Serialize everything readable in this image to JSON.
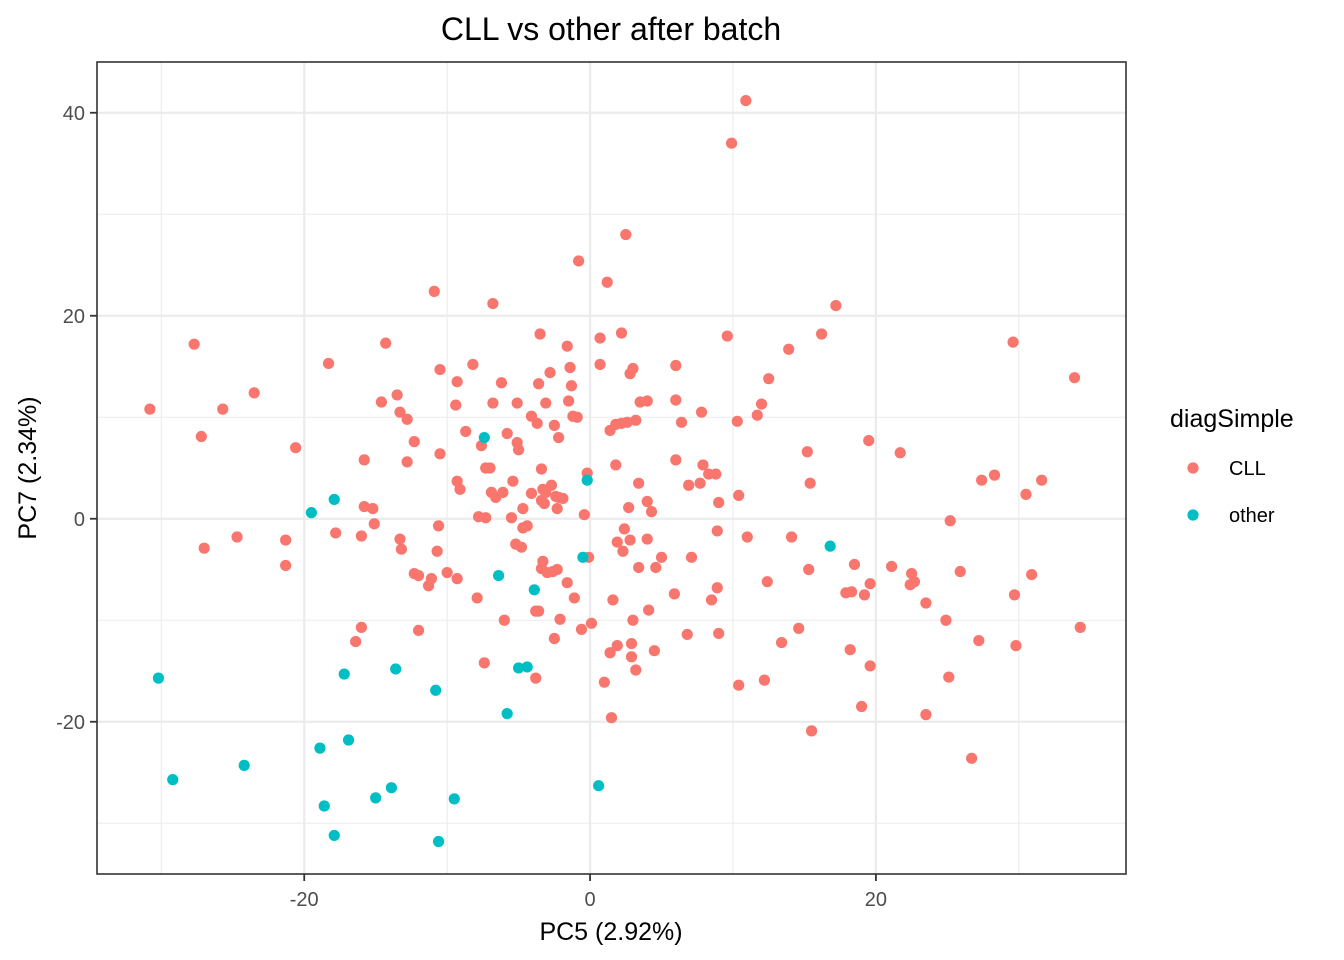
{
  "chart_data": {
    "type": "scatter",
    "title": "CLL vs other after batch",
    "xlabel": "PC5 (2.92%)",
    "ylabel": "PC7 (2.34%)",
    "xlim": [
      -34.5,
      37.5
    ],
    "ylim": [
      -35,
      45
    ],
    "x_ticks": [
      -20,
      0,
      20
    ],
    "y_ticks": [
      -20,
      0,
      20,
      40
    ],
    "x_tick_labels": [
      "-20",
      "0",
      "20"
    ],
    "y_tick_labels": [
      "-20",
      "0",
      "20",
      "40"
    ],
    "grid": true,
    "legend": {
      "title": "diagSimple",
      "position": "right"
    },
    "series": [
      {
        "name": "CLL",
        "color": "#F8766D",
        "points": [
          [
            10.9,
            41.2
          ],
          [
            9.9,
            37.0
          ],
          [
            2.5,
            28.0
          ],
          [
            -0.8,
            25.4
          ],
          [
            1.2,
            23.3
          ],
          [
            -10.9,
            22.4
          ],
          [
            -6.8,
            21.2
          ],
          [
            17.2,
            21.0
          ],
          [
            -3.5,
            18.2
          ],
          [
            2.2,
            18.3
          ],
          [
            16.2,
            18.2
          ],
          [
            9.6,
            18.0
          ],
          [
            0.7,
            17.8
          ],
          [
            -1.6,
            17.0
          ],
          [
            29.6,
            17.4
          ],
          [
            -27.7,
            17.2
          ],
          [
            -14.3,
            17.3
          ],
          [
            13.9,
            16.7
          ],
          [
            -18.3,
            15.3
          ],
          [
            -8.2,
            15.2
          ],
          [
            0.7,
            15.2
          ],
          [
            6.0,
            15.1
          ],
          [
            -1.4,
            14.9
          ],
          [
            3.0,
            14.8
          ],
          [
            -10.5,
            14.7
          ],
          [
            -2.8,
            14.4
          ],
          [
            2.8,
            14.3
          ],
          [
            33.9,
            13.9
          ],
          [
            12.5,
            13.8
          ],
          [
            -9.3,
            13.5
          ],
          [
            -6.2,
            13.4
          ],
          [
            -3.6,
            13.3
          ],
          [
            -1.3,
            13.1
          ],
          [
            -23.5,
            12.4
          ],
          [
            -13.5,
            12.2
          ],
          [
            4.0,
            11.6
          ],
          [
            -14.6,
            11.5
          ],
          [
            -6.8,
            11.4
          ],
          [
            -5.1,
            11.4
          ],
          [
            -3.1,
            11.4
          ],
          [
            -1.5,
            11.6
          ],
          [
            3.5,
            11.5
          ],
          [
            12.0,
            11.3
          ],
          [
            6.0,
            11.7
          ],
          [
            -30.8,
            10.8
          ],
          [
            -25.7,
            10.8
          ],
          [
            -9.4,
            11.2
          ],
          [
            -13.3,
            10.5
          ],
          [
            -1.2,
            10.1
          ],
          [
            -0.9,
            10.0
          ],
          [
            -4.1,
            10.1
          ],
          [
            -12.8,
            9.8
          ],
          [
            7.8,
            10.5
          ],
          [
            11.7,
            10.2
          ],
          [
            10.3,
            9.6
          ],
          [
            3.2,
            9.7
          ],
          [
            6.4,
            9.5
          ],
          [
            -3.7,
            9.4
          ],
          [
            -2.5,
            9.2
          ],
          [
            1.4,
            8.7
          ],
          [
            1.8,
            9.3
          ],
          [
            2.2,
            9.4
          ],
          [
            2.6,
            9.5
          ],
          [
            -8.7,
            8.6
          ],
          [
            -5.8,
            8.4
          ],
          [
            -2.2,
            8.0
          ],
          [
            -27.2,
            8.1
          ],
          [
            -12.3,
            7.6
          ],
          [
            -5.1,
            7.5
          ],
          [
            -7.6,
            7.2
          ],
          [
            19.5,
            7.7
          ],
          [
            -20.6,
            7.0
          ],
          [
            -5.0,
            6.8
          ],
          [
            15.2,
            6.6
          ],
          [
            21.7,
            6.5
          ],
          [
            -10.5,
            6.4
          ],
          [
            -15.8,
            5.8
          ],
          [
            -12.8,
            5.6
          ],
          [
            1.8,
            5.3
          ],
          [
            6.0,
            5.8
          ],
          [
            7.9,
            5.3
          ],
          [
            -7.3,
            5.0
          ],
          [
            -7.0,
            5.0
          ],
          [
            -3.4,
            4.9
          ],
          [
            8.3,
            4.4
          ],
          [
            8.8,
            4.4
          ],
          [
            -0.2,
            4.5
          ],
          [
            -9.3,
            3.7
          ],
          [
            -5.4,
            3.7
          ],
          [
            -2.7,
            3.3
          ],
          [
            3.4,
            3.5
          ],
          [
            6.9,
            3.3
          ],
          [
            7.7,
            3.5
          ],
          [
            15.4,
            3.5
          ],
          [
            27.4,
            3.8
          ],
          [
            28.3,
            4.3
          ],
          [
            31.6,
            3.8
          ],
          [
            -9.1,
            2.9
          ],
          [
            -6.9,
            2.6
          ],
          [
            -6.1,
            2.6
          ],
          [
            -4.1,
            2.5
          ],
          [
            -3.3,
            2.9
          ],
          [
            -3.1,
            2.6
          ],
          [
            -2.4,
            2.2
          ],
          [
            -2.2,
            2.1
          ],
          [
            -1.9,
            2.0
          ],
          [
            -6.6,
            2.1
          ],
          [
            -3.4,
            1.8
          ],
          [
            -3.2,
            1.5
          ],
          [
            4.0,
            1.7
          ],
          [
            10.4,
            2.3
          ],
          [
            9.0,
            1.6
          ],
          [
            30.5,
            2.4
          ],
          [
            -15.8,
            1.2
          ],
          [
            -15.2,
            1.0
          ],
          [
            -4.7,
            1.0
          ],
          [
            -2.3,
            1.0
          ],
          [
            2.7,
            1.1
          ],
          [
            -7.8,
            0.2
          ],
          [
            -7.3,
            0.1
          ],
          [
            -5.5,
            0.1
          ],
          [
            -0.4,
            0.4
          ],
          [
            4.3,
            0.7
          ],
          [
            25.2,
            -0.2
          ],
          [
            -15.1,
            -0.5
          ],
          [
            -4.7,
            -0.9
          ],
          [
            -4.4,
            -0.7
          ],
          [
            -10.6,
            -0.7
          ],
          [
            2.4,
            -1.0
          ],
          [
            8.9,
            -1.2
          ],
          [
            -17.8,
            -1.4
          ],
          [
            -16.0,
            -1.7
          ],
          [
            -24.7,
            -1.8
          ],
          [
            -21.3,
            -2.1
          ],
          [
            -13.3,
            -2.0
          ],
          [
            -5.2,
            -2.5
          ],
          [
            -4.8,
            -2.8
          ],
          [
            1.9,
            -2.3
          ],
          [
            2.8,
            -2.1
          ],
          [
            4.0,
            -2.0
          ],
          [
            11.0,
            -1.8
          ],
          [
            14.1,
            -1.8
          ],
          [
            -27.0,
            -2.9
          ],
          [
            -13.2,
            -3.0
          ],
          [
            -10.7,
            -3.2
          ],
          [
            -0.1,
            -3.8
          ],
          [
            2.3,
            -3.2
          ],
          [
            5.0,
            -3.8
          ],
          [
            7.1,
            -3.8
          ],
          [
            -3.3,
            -4.2
          ],
          [
            -3.4,
            -4.9
          ],
          [
            -3.0,
            -5.3
          ],
          [
            -2.6,
            -5.2
          ],
          [
            -2.3,
            -5.0
          ],
          [
            3.4,
            -4.8
          ],
          [
            4.6,
            -4.8
          ],
          [
            15.3,
            -5.0
          ],
          [
            18.5,
            -4.5
          ],
          [
            21.1,
            -4.7
          ],
          [
            22.5,
            -5.4
          ],
          [
            25.9,
            -5.2
          ],
          [
            30.9,
            -5.5
          ],
          [
            -21.3,
            -4.6
          ],
          [
            -12.3,
            -5.4
          ],
          [
            -12.0,
            -5.6
          ],
          [
            -11.1,
            -5.9
          ],
          [
            -11.3,
            -6.6
          ],
          [
            -9.3,
            -5.9
          ],
          [
            -10.0,
            -5.3
          ],
          [
            -1.6,
            -6.3
          ],
          [
            12.4,
            -6.2
          ],
          [
            19.6,
            -6.4
          ],
          [
            22.4,
            -6.5
          ],
          [
            22.7,
            -6.2
          ],
          [
            8.9,
            -6.8
          ],
          [
            -7.9,
            -7.8
          ],
          [
            -1.1,
            -7.8
          ],
          [
            1.6,
            -8.0
          ],
          [
            5.9,
            -7.4
          ],
          [
            8.5,
            -8.0
          ],
          [
            17.9,
            -7.3
          ],
          [
            18.3,
            -7.2
          ],
          [
            19.2,
            -7.5
          ],
          [
            23.5,
            -8.3
          ],
          [
            29.7,
            -7.5
          ],
          [
            -3.8,
            -9.1
          ],
          [
            -3.6,
            -9.1
          ],
          [
            4.1,
            -9.0
          ],
          [
            -6.0,
            -10.0
          ],
          [
            -2.1,
            -9.9
          ],
          [
            0.1,
            -10.3
          ],
          [
            -0.6,
            -10.9
          ],
          [
            3.0,
            -10.0
          ],
          [
            6.8,
            -11.4
          ],
          [
            9.0,
            -11.3
          ],
          [
            14.6,
            -10.8
          ],
          [
            24.9,
            -10.0
          ],
          [
            34.3,
            -10.7
          ],
          [
            -16.0,
            -10.7
          ],
          [
            -12.0,
            -11.0
          ],
          [
            -16.4,
            -12.1
          ],
          [
            -2.5,
            -11.8
          ],
          [
            2.9,
            -12.3
          ],
          [
            1.9,
            -12.5
          ],
          [
            13.4,
            -12.2
          ],
          [
            18.2,
            -12.9
          ],
          [
            27.2,
            -12.0
          ],
          [
            29.8,
            -12.5
          ],
          [
            1.4,
            -13.2
          ],
          [
            2.9,
            -13.6
          ],
          [
            4.5,
            -13.0
          ],
          [
            -7.4,
            -14.2
          ],
          [
            3.2,
            -14.9
          ],
          [
            19.6,
            -14.5
          ],
          [
            -3.8,
            -15.7
          ],
          [
            1.0,
            -16.1
          ],
          [
            10.4,
            -16.4
          ],
          [
            12.2,
            -15.9
          ],
          [
            25.1,
            -15.6
          ],
          [
            1.5,
            -19.6
          ],
          [
            19.0,
            -18.5
          ],
          [
            23.5,
            -19.3
          ],
          [
            15.5,
            -20.9
          ],
          [
            26.7,
            -23.6
          ]
        ]
      },
      {
        "name": "other",
        "color": "#00BFC4",
        "points": [
          [
            -7.4,
            8.0
          ],
          [
            -0.2,
            3.8
          ],
          [
            -17.9,
            1.9
          ],
          [
            -19.5,
            0.6
          ],
          [
            16.8,
            -2.7
          ],
          [
            -0.5,
            -3.8
          ],
          [
            -6.4,
            -5.6
          ],
          [
            -3.9,
            -7.0
          ],
          [
            -4.4,
            -14.6
          ],
          [
            -5.0,
            -14.7
          ],
          [
            -13.6,
            -14.8
          ],
          [
            -17.2,
            -15.3
          ],
          [
            -30.2,
            -15.7
          ],
          [
            -10.8,
            -16.9
          ],
          [
            -5.8,
            -19.2
          ],
          [
            -16.9,
            -21.8
          ],
          [
            -18.9,
            -22.6
          ],
          [
            -24.2,
            -24.3
          ],
          [
            -29.2,
            -25.7
          ],
          [
            -13.9,
            -26.5
          ],
          [
            0.6,
            -26.3
          ],
          [
            -15.0,
            -27.5
          ],
          [
            -9.5,
            -27.6
          ],
          [
            -18.6,
            -28.3
          ],
          [
            -17.9,
            -31.2
          ],
          [
            -10.6,
            -31.8
          ]
        ]
      }
    ]
  }
}
